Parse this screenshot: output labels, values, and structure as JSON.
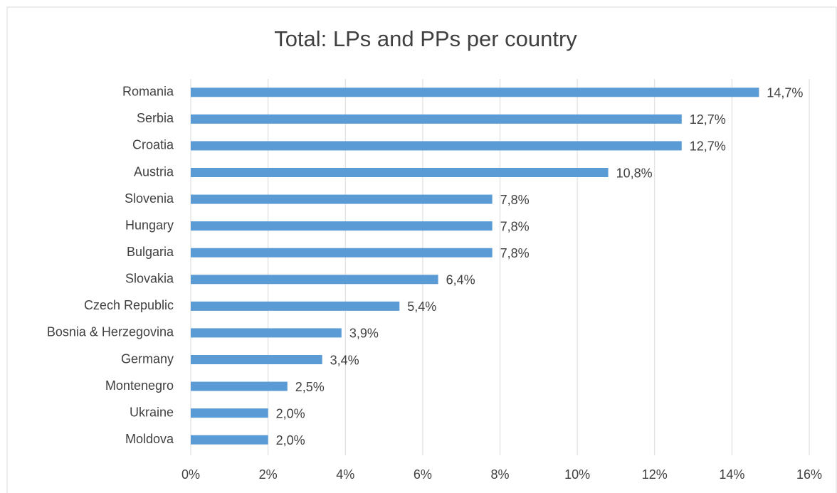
{
  "chart_data": {
    "type": "barh",
    "title": "Total: LPs and PPs per country",
    "categories": [
      "Romania",
      "Serbia",
      "Croatia",
      "Austria",
      "Slovenia",
      "Hungary",
      "Bulgaria",
      "Slovakia",
      "Czech Republic",
      "Bosnia & Herzegovina",
      "Germany",
      "Montenegro",
      "Ukraine",
      "Moldova"
    ],
    "values": [
      14.7,
      12.7,
      12.7,
      10.8,
      7.8,
      7.8,
      7.8,
      6.4,
      5.4,
      3.9,
      3.4,
      2.5,
      2.0,
      2.0
    ],
    "value_labels": [
      "14,7%",
      "12,7%",
      "12,7%",
      "10,8%",
      "7,8%",
      "7,8%",
      "7,8%",
      "6,4%",
      "5,4%",
      "3,9%",
      "3,4%",
      "2,5%",
      "2,0%",
      "2,0%"
    ],
    "color": "#5b9bd5",
    "xlim": [
      0,
      16
    ],
    "xticks": [
      {
        "value": 0,
        "label": "0%"
      },
      {
        "value": 2,
        "label": "2%"
      },
      {
        "value": 4,
        "label": "4%"
      },
      {
        "value": 6,
        "label": "6%"
      },
      {
        "value": 8,
        "label": "8%"
      },
      {
        "value": 10,
        "label": "10%"
      },
      {
        "value": 12,
        "label": "12%"
      },
      {
        "value": 14,
        "label": "14%"
      },
      {
        "value": 16,
        "label": "16%"
      }
    ],
    "grid": true
  }
}
